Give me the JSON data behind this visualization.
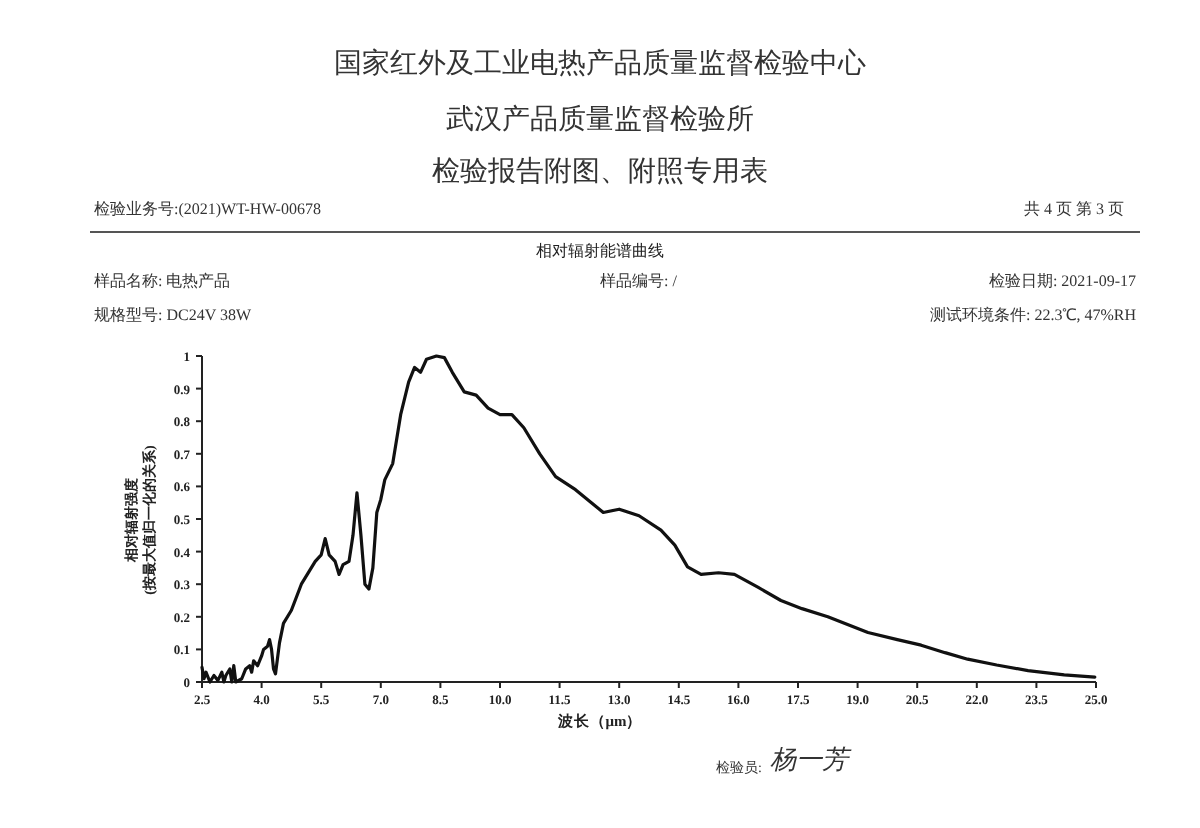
{
  "chart_data": {
    "type": "line",
    "title": "相对辐射能谱曲线",
    "xlabel": "波长（μm）",
    "ylabel": "相对辐射强度\n(按最大值归一化的关系)",
    "annotations": [
      "国家红外及工业电热产品质量监督检验中心",
      "武汉产品质量监督检验所",
      "检验报告附图、附照专用表",
      "检验业务号:(2021)WT-HW-00678",
      "共 4 页 第 3 页",
      "样品名称: 电热产品",
      "样品编号: /",
      "检验日期: 2021-09-17",
      "规格型号: DC24V 38W",
      "测试环境条件: 22.3℃, 47%RH",
      "检验员:",
      "杨一芳"
    ],
    "x": [
      2.5,
      2.55,
      2.6,
      2.7,
      2.8,
      2.9,
      3.0,
      3.05,
      3.1,
      3.2,
      3.25,
      3.3,
      3.35,
      3.5,
      3.6,
      3.7,
      3.75,
      3.8,
      3.9,
      4.0,
      4.05,
      4.15,
      4.2,
      4.25,
      4.3,
      4.35,
      4.45,
      4.55,
      4.75,
      5.0,
      5.2,
      5.35,
      5.5,
      5.6,
      5.7,
      5.85,
      5.95,
      6.05,
      6.2,
      6.3,
      6.4,
      6.5,
      6.6,
      6.7,
      6.8,
      6.9,
      7.0,
      7.1,
      7.3,
      7.5,
      7.7,
      7.85,
      8.0,
      8.15,
      8.4,
      8.6,
      8.8,
      9.1,
      9.4,
      9.7,
      10.0,
      10.3,
      10.6,
      11.0,
      11.4,
      11.9,
      12.3,
      12.6,
      13.0,
      13.5,
      14.05,
      14.4,
      14.72,
      15.06,
      15.5,
      15.9,
      16.5,
      17.07,
      17.6,
      18.25,
      19.26,
      20.0,
      20.6,
      21.2,
      21.77,
      22.5,
      23.29,
      24.2,
      24.97
    ],
    "series": [
      {
        "color": "#111111",
        "values": [
          0.045,
          0.01,
          0.03,
          0.0,
          0.02,
          0.005,
          0.03,
          0.0,
          0.02,
          0.04,
          0.0,
          0.05,
          0.0,
          0.01,
          0.04,
          0.05,
          0.03,
          0.065,
          0.05,
          0.08,
          0.1,
          0.11,
          0.13,
          0.1,
          0.04,
          0.025,
          0.12,
          0.18,
          0.22,
          0.3,
          0.34,
          0.37,
          0.39,
          0.44,
          0.39,
          0.37,
          0.33,
          0.36,
          0.37,
          0.45,
          0.58,
          0.45,
          0.3,
          0.285,
          0.35,
          0.52,
          0.56,
          0.62,
          0.67,
          0.82,
          0.92,
          0.965,
          0.95,
          0.99,
          1.0,
          0.995,
          0.95,
          0.89,
          0.88,
          0.84,
          0.82,
          0.82,
          0.78,
          0.7,
          0.63,
          0.59,
          0.55,
          0.52,
          0.53,
          0.51,
          0.466,
          0.42,
          0.353,
          0.33,
          0.335,
          0.33,
          0.29,
          0.25,
          0.225,
          0.2,
          0.152,
          0.13,
          0.113,
          0.09,
          0.07,
          0.052,
          0.035,
          0.022,
          0.015
        ]
      }
    ],
    "xlim": [
      2.5,
      25
    ],
    "ylim": [
      0,
      1
    ],
    "xticks": [
      {
        "value": 2.5,
        "label": "2.5"
      },
      {
        "value": 4,
        "label": "4.0"
      },
      {
        "value": 5.5,
        "label": "5.5"
      },
      {
        "value": 7,
        "label": "7.0"
      },
      {
        "value": 8.5,
        "label": "8.5"
      },
      {
        "value": 10,
        "label": "10.0"
      },
      {
        "value": 11.5,
        "label": "11.5"
      },
      {
        "value": 13,
        "label": "13.0"
      },
      {
        "value": 14.5,
        "label": "14.5"
      },
      {
        "value": 16,
        "label": "16.0"
      },
      {
        "value": 17.5,
        "label": "17.5"
      },
      {
        "value": 19,
        "label": "19.0"
      },
      {
        "value": 20.5,
        "label": "20.5"
      },
      {
        "value": 22,
        "label": "22.0"
      },
      {
        "value": 23.5,
        "label": "23.5"
      },
      {
        "value": 25,
        "label": "25.0"
      }
    ],
    "yticks": [
      0,
      0.1,
      0.2,
      0.3,
      0.4,
      0.5,
      0.6,
      0.7,
      0.8,
      0.9,
      1
    ],
    "grid": false
  }
}
